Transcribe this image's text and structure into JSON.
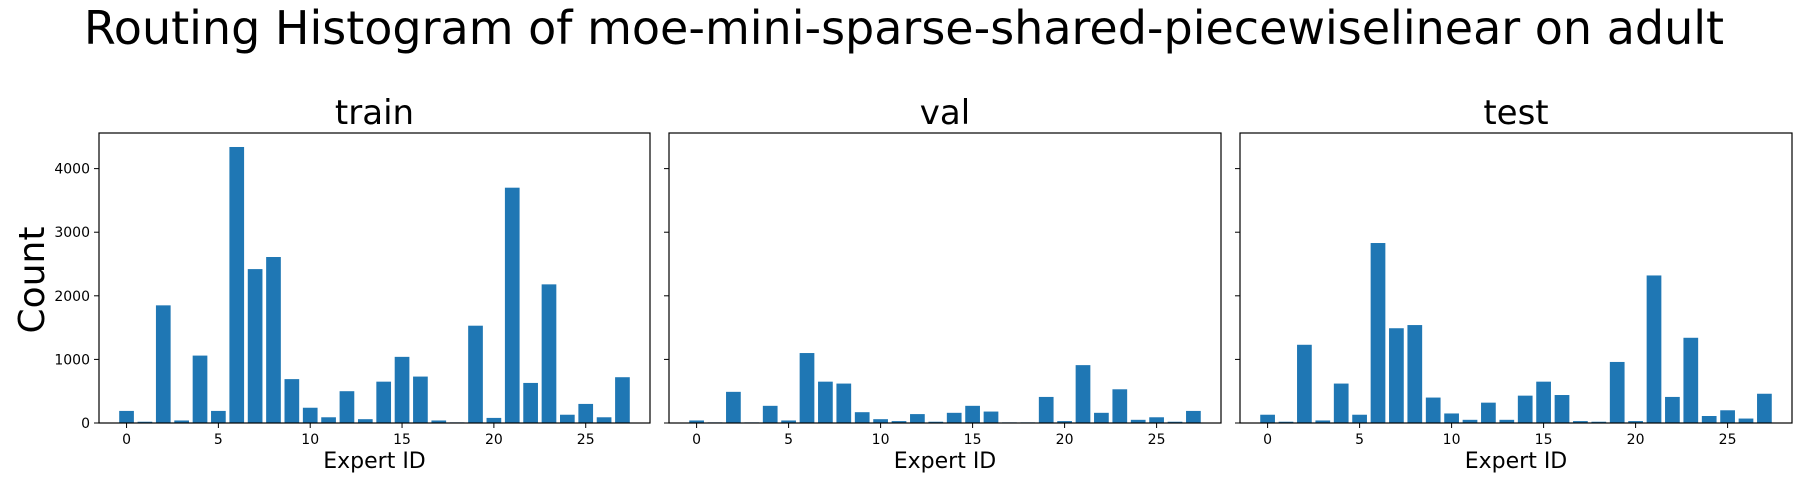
{
  "figure": {
    "suptitle": "Routing Histogram of moe-mini-sparse-shared-piecewiselinear on adult",
    "ylabel": "Count"
  },
  "colors": {
    "bar": "#1f77b4",
    "axes": "#000000",
    "background": "#ffffff"
  },
  "chart_data": [
    {
      "type": "bar",
      "title": "train",
      "xlabel": "Expert ID",
      "ylabel": "Count",
      "xlim": [
        -1.5,
        28.5
      ],
      "ylim": [
        0,
        4560
      ],
      "xticks": [
        0,
        5,
        10,
        15,
        20,
        25
      ],
      "yticks": [
        0,
        1000,
        2000,
        3000,
        4000
      ],
      "grid": false,
      "categories": [
        0,
        1,
        2,
        3,
        4,
        5,
        6,
        7,
        8,
        9,
        10,
        11,
        12,
        13,
        14,
        15,
        16,
        17,
        18,
        19,
        20,
        21,
        22,
        23,
        24,
        25,
        26,
        27
      ],
      "values": [
        190,
        20,
        1850,
        40,
        1060,
        190,
        4340,
        2420,
        2610,
        690,
        240,
        90,
        500,
        60,
        650,
        1040,
        730,
        40,
        10,
        1530,
        80,
        3700,
        630,
        2180,
        130,
        300,
        90,
        720
      ]
    },
    {
      "type": "bar",
      "title": "val",
      "xlabel": "Expert ID",
      "ylabel": "",
      "xlim": [
        -1.5,
        28.5
      ],
      "ylim": [
        0,
        4560
      ],
      "xticks": [
        0,
        5,
        10,
        15,
        20,
        25
      ],
      "yticks": [
        0,
        1000,
        2000,
        3000,
        4000
      ],
      "grid": false,
      "categories": [
        0,
        1,
        2,
        3,
        4,
        5,
        6,
        7,
        8,
        9,
        10,
        11,
        12,
        13,
        14,
        15,
        16,
        17,
        18,
        19,
        20,
        21,
        22,
        23,
        24,
        25,
        26,
        27
      ],
      "values": [
        40,
        10,
        490,
        10,
        270,
        40,
        1100,
        650,
        620,
        170,
        60,
        30,
        140,
        20,
        160,
        270,
        180,
        10,
        10,
        410,
        30,
        910,
        160,
        530,
        50,
        90,
        20,
        190
      ]
    },
    {
      "type": "bar",
      "title": "test",
      "xlabel": "Expert ID",
      "ylabel": "",
      "xlim": [
        -1.5,
        28.5
      ],
      "ylim": [
        0,
        4560
      ],
      "xticks": [
        0,
        5,
        10,
        15,
        20,
        25
      ],
      "yticks": [
        0,
        1000,
        2000,
        3000,
        4000
      ],
      "grid": false,
      "categories": [
        0,
        1,
        2,
        3,
        4,
        5,
        6,
        7,
        8,
        9,
        10,
        11,
        12,
        13,
        14,
        15,
        16,
        17,
        18,
        19,
        20,
        21,
        22,
        23,
        24,
        25,
        26,
        27
      ],
      "values": [
        130,
        20,
        1230,
        40,
        620,
        130,
        2830,
        1490,
        1540,
        400,
        150,
        50,
        320,
        50,
        430,
        650,
        440,
        30,
        20,
        960,
        30,
        2320,
        410,
        1340,
        110,
        200,
        70,
        460
      ]
    }
  ]
}
